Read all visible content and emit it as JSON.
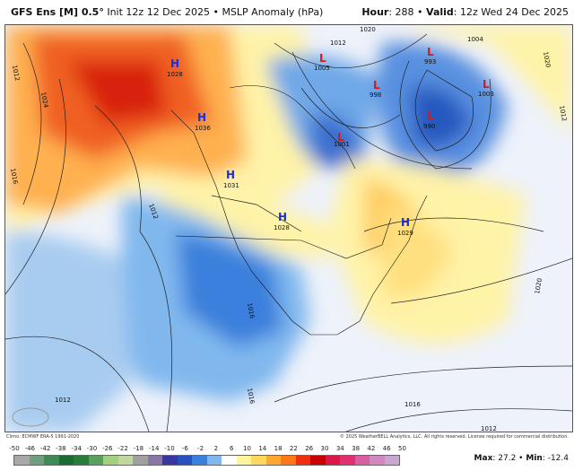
{
  "header": {
    "model": "GFS Ens [M] 0.5",
    "deg": "°",
    "init": " Init 12z 12 Dec 2025 • MSLP Anomaly (hPa)",
    "hour_label": "Hour",
    "hour": ": 288 • ",
    "valid_label": "Valid",
    "valid": ": 12z Wed 24 Dec 2025"
  },
  "footer": {
    "clim": "Climo: ECMWF ERA-5 1991-2020",
    "copyright": "© 2025 WeatherBELL Analytics, LLC. All rights reserved. License required for commercial distribution.",
    "max_label": "Max",
    "max": ": 27.2 • ",
    "min_label": "Min",
    "min": ": -12.4",
    "logo": "WeatherBELL"
  },
  "centers": [
    {
      "type": "H",
      "value": "1028"
    },
    {
      "type": "H",
      "value": "1036"
    },
    {
      "type": "H",
      "value": "1031"
    },
    {
      "type": "H",
      "value": "1028"
    },
    {
      "type": "H",
      "value": "1029"
    },
    {
      "type": "L",
      "value": "1005"
    },
    {
      "type": "L",
      "value": "998"
    },
    {
      "type": "L",
      "value": "993"
    },
    {
      "type": "L",
      "value": "1003"
    },
    {
      "type": "L",
      "value": "990"
    },
    {
      "type": "L",
      "value": "1001"
    }
  ],
  "isobar_labels": [
    "1012",
    "1024",
    "1016",
    "1012",
    "1020",
    "1012",
    "1016",
    "1016",
    "1012",
    "1016",
    "1020",
    "1012",
    "1004",
    "1020",
    "1012"
  ],
  "colorbar": {
    "ticks": [
      "-50",
      "-46",
      "-42",
      "-38",
      "-34",
      "-30",
      "-26",
      "-22",
      "-18",
      "-14",
      "-10",
      "-6",
      "-2",
      "2",
      "6",
      "10",
      "14",
      "18",
      "22",
      "26",
      "30",
      "34",
      "38",
      "42",
      "46",
      "50"
    ],
    "colors": [
      "#a8a8a8",
      "#6f9f7f",
      "#3f8a56",
      "#1d6b34",
      "#287d3c",
      "#5aa05a",
      "#a0d080",
      "#c0d8a0",
      "#a0a0a0",
      "#8878a8",
      "#3838a0",
      "#2850c0",
      "#3a80dc",
      "#80b8ee",
      "#ffffff",
      "#fff5a0",
      "#ffd860",
      "#ffa830",
      "#ff7818",
      "#ee3010",
      "#c80000",
      "#d81848",
      "#e03070",
      "#d860a0",
      "#d088c0",
      "#c8a8d0"
    ]
  }
}
